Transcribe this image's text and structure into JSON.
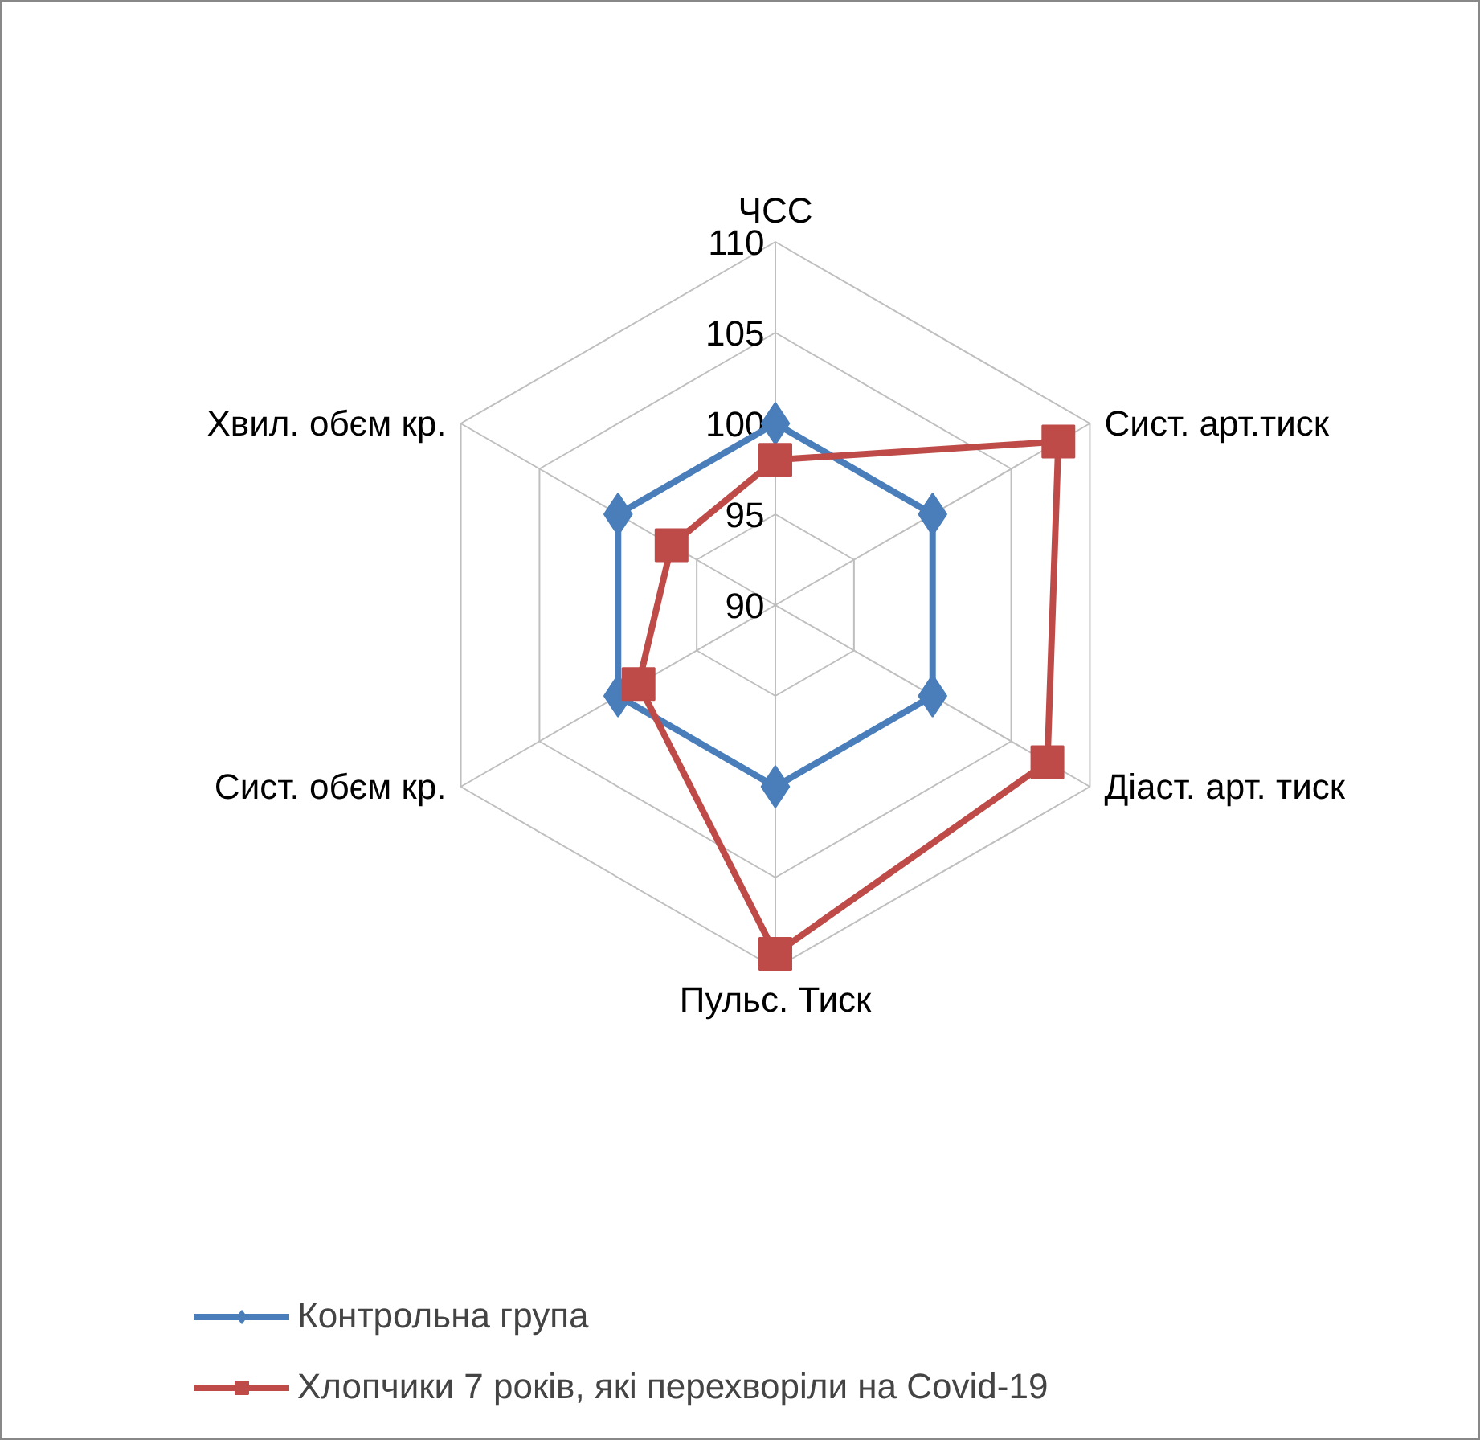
{
  "chart_data": {
    "type": "radar",
    "categories": [
      "ЧСС",
      "Сист. арт.тиск",
      "Діаст. арт. тиск",
      "Пульс. Тиск",
      "Сист. обєм кр.",
      "Хвил. обєм кр."
    ],
    "ylim": [
      90,
      110
    ],
    "yticks": [
      90,
      95,
      100,
      105,
      110
    ],
    "grid": true,
    "legend": "bottom",
    "series": [
      {
        "name": "Контрольна група",
        "color": "#4a7ebb",
        "marker": "diamond",
        "values": [
          100,
          100,
          100,
          100,
          100,
          100
        ]
      },
      {
        "name": "Хлопчики 7 років, які перехворіли на Covid-19",
        "color": "#be4b48",
        "marker": "square",
        "values": [
          98,
          108,
          107.3,
          109.2,
          98.7,
          96.6
        ]
      }
    ]
  }
}
